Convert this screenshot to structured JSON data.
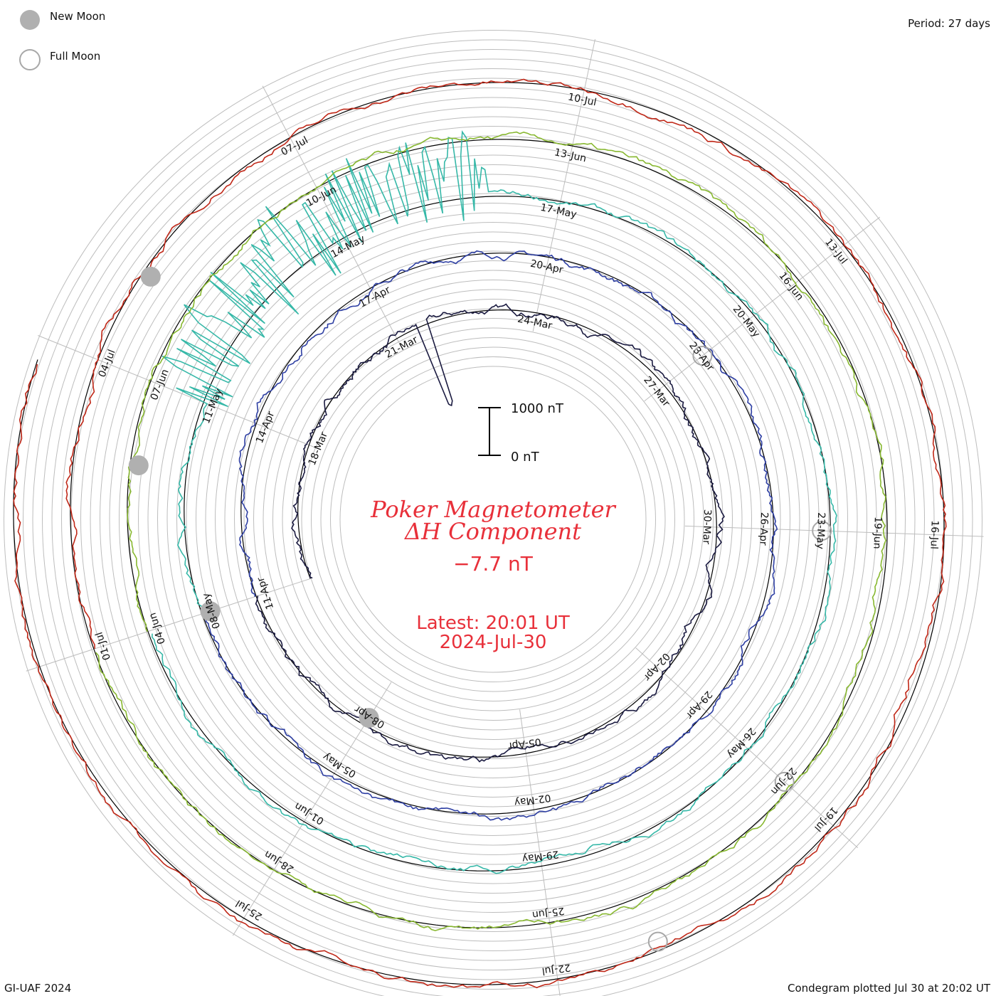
{
  "legend": {
    "new_moon_label": "New Moon",
    "full_moon_label": "Full Moon"
  },
  "period_label": "Period: 27 days",
  "credit": "GI-UAF 2024",
  "footer": "Condegram plotted Jul 30 at 20:02 UT",
  "title_line1": "Poker Magnetometer",
  "title_line2": "ΔH Component",
  "current_value": "−7.7 nT",
  "latest_line1": "Latest: 20:01 UT",
  "latest_line2": "2024-Jul-30",
  "scale": {
    "top_label": "1000 nT",
    "bottom_label": "0 nT"
  },
  "colors": {
    "grid": "#bdbdbd",
    "title": "#e8303a",
    "moon_new": "#b0b0b0",
    "moon_full": "#a8a8a8"
  },
  "chart_data": {
    "type": "line",
    "title": "Poker Magnetometer ΔH Component",
    "period_days": 27,
    "projection": "spiral condegram",
    "series": [
      {
        "start": "2024-03-15",
        "end": "2024-04-10",
        "color": "#1a1a40",
        "date_labels": [
          "18-Mar",
          "21-Mar",
          "24-Mar",
          "27-Mar",
          "30-Mar",
          "02-Apr",
          "05-Apr",
          "08-Apr"
        ]
      },
      {
        "start": "2024-04-11",
        "end": "2024-05-07",
        "color": "#2e3fa3",
        "date_labels": [
          "11-Apr",
          "14-Apr",
          "17-Apr",
          "20-Apr",
          "23-Apr",
          "26-Apr",
          "29-Apr",
          "02-May",
          "05-May"
        ]
      },
      {
        "start": "2024-05-08",
        "end": "2024-06-03",
        "color": "#36b8a8",
        "date_labels": [
          "08-May",
          "11-May",
          "14-May",
          "17-May",
          "20-May",
          "23-May",
          "26-May",
          "29-May",
          "01-Jun"
        ]
      },
      {
        "start": "2024-06-04",
        "end": "2024-06-30",
        "color": "#88b830",
        "date_labels": [
          "04-Jun",
          "07-Jun",
          "10-Jun",
          "13-Jun",
          "16-Jun",
          "19-Jun",
          "22-Jun",
          "25-Jun",
          "28-Jun"
        ]
      },
      {
        "start": "2024-07-01",
        "end": "2024-07-30",
        "color": "#c02818",
        "date_labels": [
          "01-Jul",
          "04-Jul",
          "07-Jul",
          "10-Jul",
          "13-Jul",
          "16-Jul",
          "19-Jul",
          "22-Jul",
          "25-Jul"
        ]
      }
    ],
    "events": [
      {
        "type": "new_moon",
        "date": "2024-04-08"
      },
      {
        "type": "full_moon",
        "date": "2024-04-23"
      },
      {
        "type": "new_moon",
        "date": "2024-05-08"
      },
      {
        "type": "full_moon",
        "date": "2024-05-23"
      },
      {
        "type": "new_moon",
        "date": "2024-06-06"
      },
      {
        "type": "full_moon",
        "date": "2024-06-22"
      },
      {
        "type": "new_moon",
        "date": "2024-07-05"
      },
      {
        "type": "full_moon",
        "date": "2024-07-21"
      }
    ],
    "latest_value_nT": -7.7,
    "scale_bar_nT": [
      0,
      1000
    ]
  }
}
